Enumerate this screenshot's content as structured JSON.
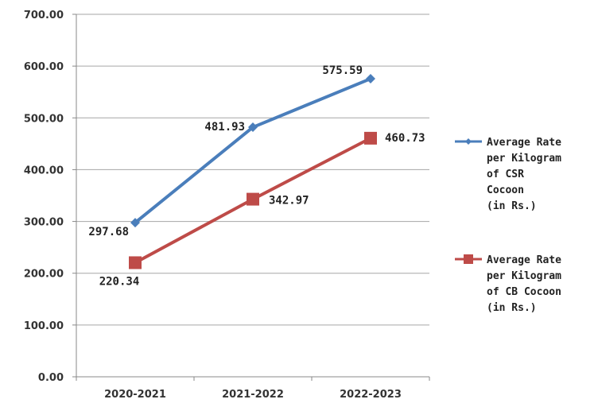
{
  "chart_data": {
    "type": "line",
    "categories": [
      "2020-2021",
      "2021-2022",
      "2022-2023"
    ],
    "y_ticks": [
      "0.00",
      "100.00",
      "200.00",
      "300.00",
      "400.00",
      "500.00",
      "600.00",
      "700.00"
    ],
    "ylim": [
      0,
      700
    ],
    "grid": true,
    "legend_position": "right",
    "series": [
      {
        "name_lines": [
          "Average Rate",
          "per Kilogram",
          "of CSR",
          "Cocoon",
          " (in Rs.)"
        ],
        "values": [
          297.68,
          481.93,
          575.59
        ],
        "labels": [
          "297.68",
          "481.93",
          "575.59"
        ],
        "color": "#4a7ebb",
        "marker": "diamond"
      },
      {
        "name_lines": [
          "Average Rate",
          "per Kilogram",
          "of CB Cocoon",
          " (in Rs.)"
        ],
        "values": [
          220.34,
          342.97,
          460.73
        ],
        "labels": [
          "220.34",
          "342.97",
          "460.73"
        ],
        "color": "#be4b48",
        "marker": "square"
      }
    ]
  }
}
